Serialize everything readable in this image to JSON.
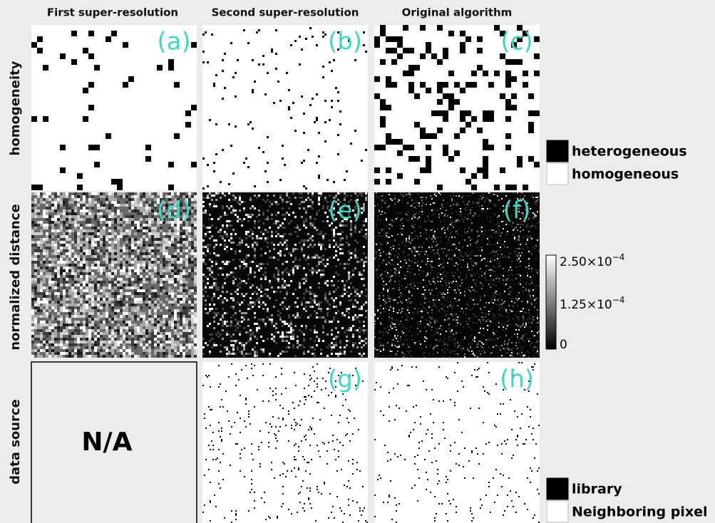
{
  "column_headers": [
    "First super-resolution",
    "Second super-resolution",
    "Original algorithm"
  ],
  "row_labels": [
    "homogeneity",
    "normalized distance",
    "data source"
  ],
  "panels": [
    "(a)",
    "(b)",
    "(c)",
    "(d)",
    "(e)",
    "(f)",
    "(g)",
    "(h)"
  ],
  "na_text": "N/A",
  "homogeneity_legend": [
    "heterogeneous",
    "homogeneous"
  ],
  "colorbar_labels": [
    {
      "base": "2.50×10",
      "exponent": "−4"
    },
    {
      "base": "1.25×10",
      "exponent": "−4"
    },
    {
      "base": "0"
    }
  ],
  "data_source_legend": [
    "library",
    "Neighboring pixel"
  ]
}
